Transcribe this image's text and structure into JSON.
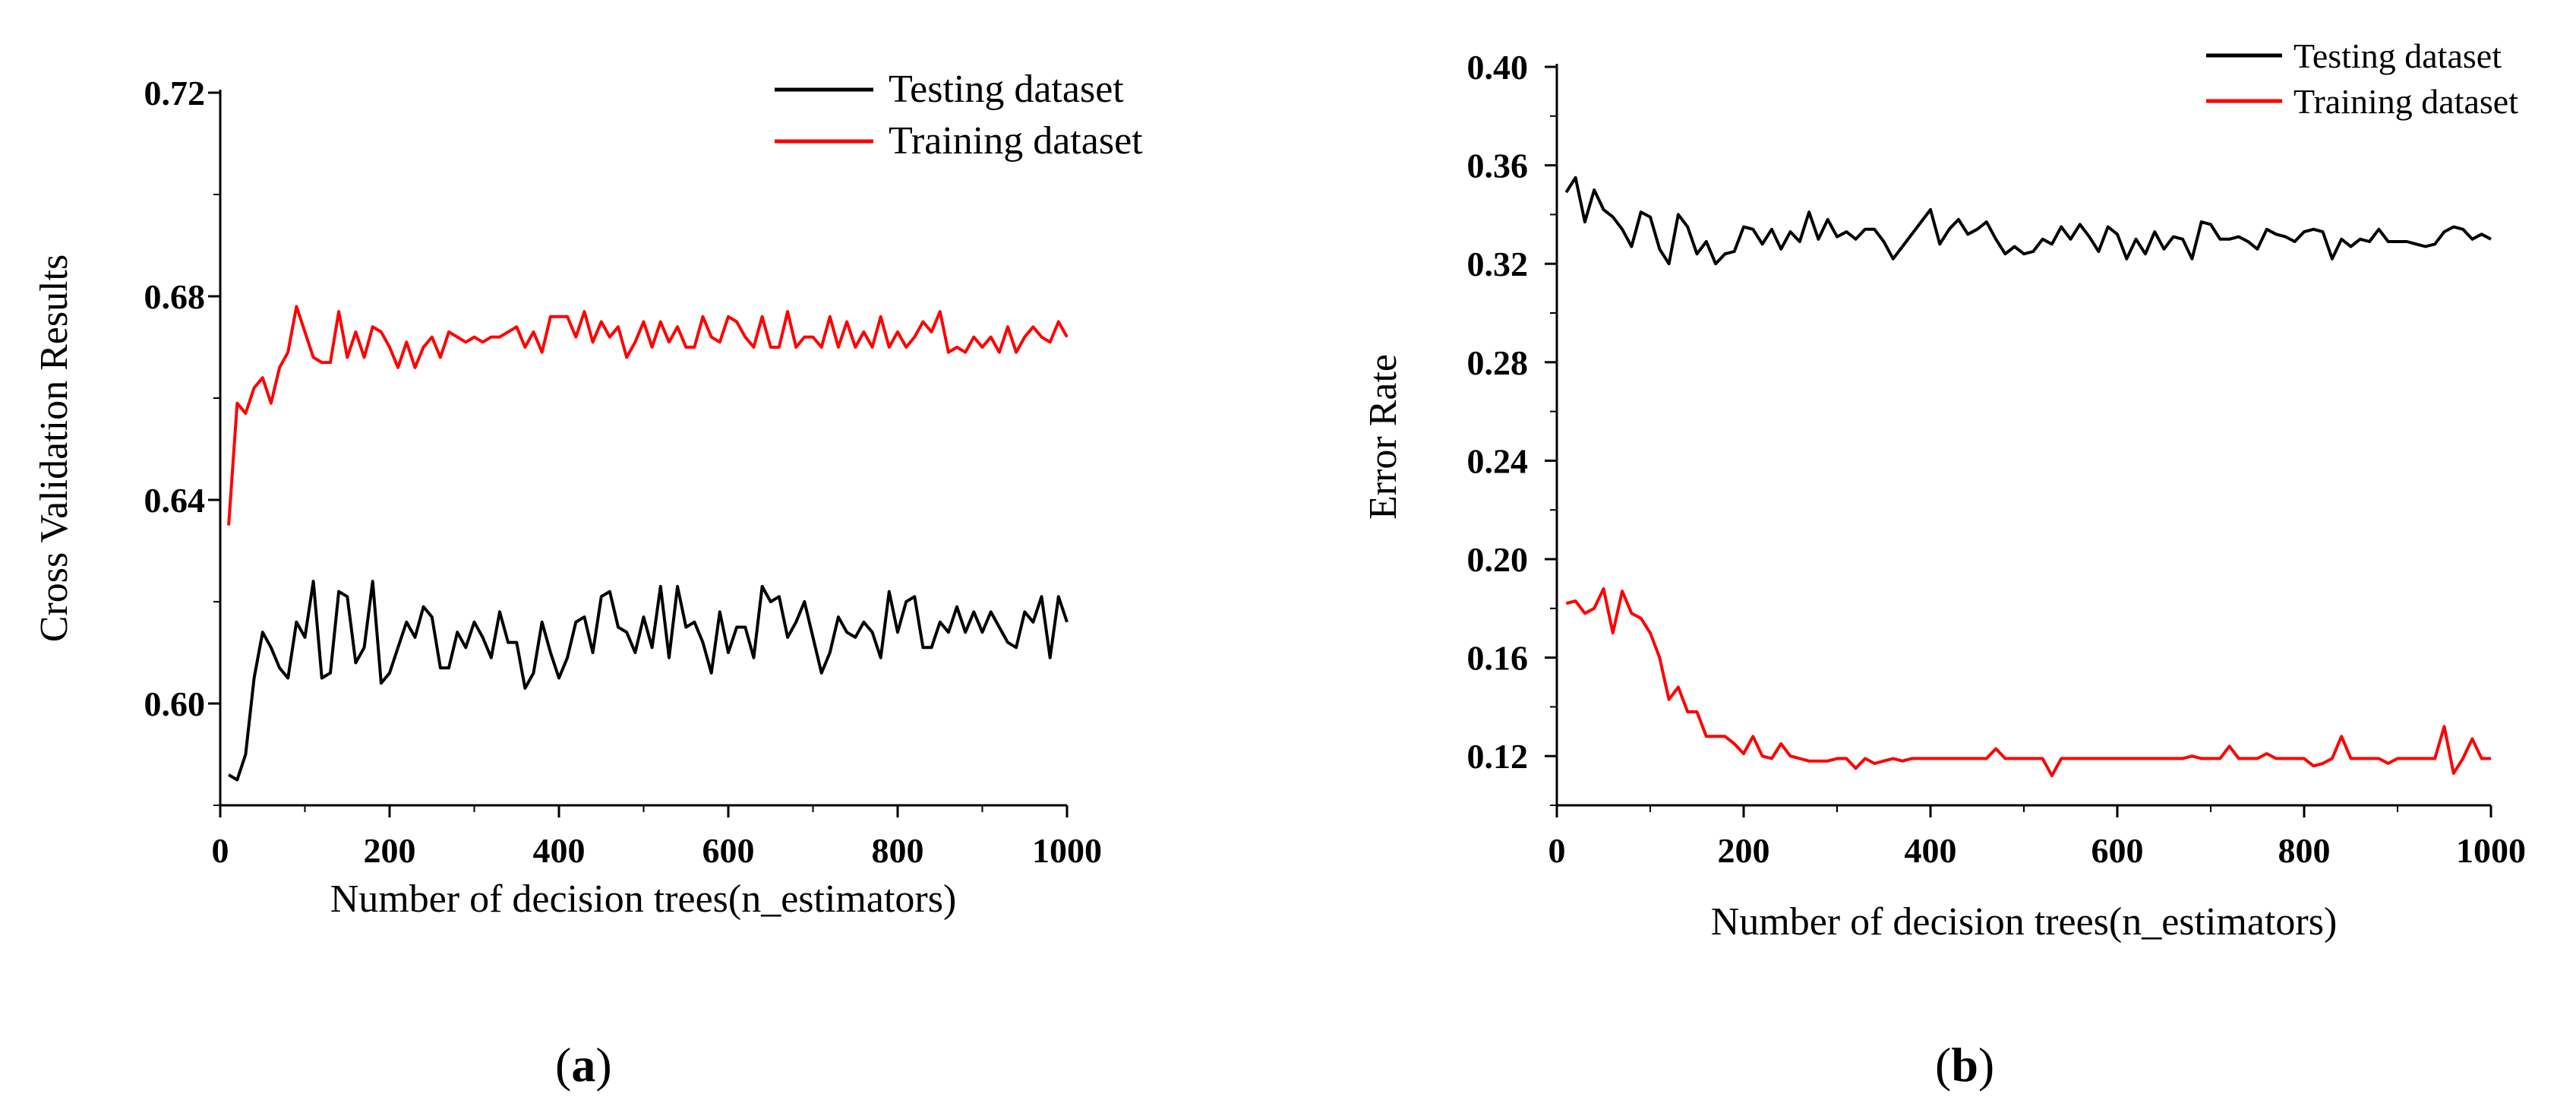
{
  "chart_data": [
    {
      "type": "line",
      "panel_label": "(a)",
      "panel_letter": "a",
      "title": "",
      "xlabel": "Number of decision trees(n_estimators)",
      "ylabel": "Cross Validation Results",
      "xlim": [
        0,
        1000
      ],
      "ylim": [
        0.58,
        0.72
      ],
      "xticks": [
        0,
        200,
        400,
        600,
        800,
        1000
      ],
      "xtick_labels": [
        "0",
        "200",
        "400",
        "600",
        "800",
        "1000"
      ],
      "yticks": [
        0.6,
        0.64,
        0.68,
        0.72
      ],
      "ytick_labels": [
        "0.60",
        "0.64",
        "0.68",
        "0.72"
      ],
      "grid": false,
      "legend_position": "top-right",
      "x": [
        10,
        20,
        30,
        40,
        50,
        60,
        70,
        80,
        90,
        100,
        110,
        120,
        130,
        140,
        150,
        160,
        170,
        180,
        190,
        200,
        210,
        220,
        230,
        240,
        250,
        260,
        270,
        280,
        290,
        300,
        310,
        320,
        330,
        340,
        350,
        360,
        370,
        380,
        390,
        400,
        410,
        420,
        430,
        440,
        450,
        460,
        470,
        480,
        490,
        500,
        510,
        520,
        530,
        540,
        550,
        560,
        570,
        580,
        590,
        600,
        610,
        620,
        630,
        640,
        650,
        660,
        670,
        680,
        690,
        700,
        710,
        720,
        730,
        740,
        750,
        760,
        770,
        780,
        790,
        800,
        810,
        820,
        830,
        840,
        850,
        860,
        870,
        880,
        890,
        900,
        910,
        920,
        930,
        940,
        950,
        960,
        970,
        980,
        990,
        1000
      ],
      "series": [
        {
          "name": "Testing dataset",
          "color": "#000000",
          "values": [
            0.586,
            0.585,
            0.59,
            0.605,
            0.614,
            0.611,
            0.607,
            0.605,
            0.616,
            0.613,
            0.624,
            0.605,
            0.606,
            0.622,
            0.621,
            0.608,
            0.611,
            0.624,
            0.604,
            0.606,
            0.611,
            0.616,
            0.613,
            0.619,
            0.617,
            0.607,
            0.607,
            0.614,
            0.611,
            0.616,
            0.613,
            0.609,
            0.618,
            0.612,
            0.612,
            0.603,
            0.606,
            0.616,
            0.61,
            0.605,
            0.609,
            0.616,
            0.617,
            0.61,
            0.621,
            0.622,
            0.615,
            0.614,
            0.61,
            0.617,
            0.611,
            0.623,
            0.609,
            0.623,
            0.615,
            0.616,
            0.612,
            0.606,
            0.618,
            0.61,
            0.615,
            0.615,
            0.609,
            0.623,
            0.62,
            0.621,
            0.613,
            0.616,
            0.62,
            0.613,
            0.606,
            0.61,
            0.617,
            0.614,
            0.613,
            0.616,
            0.614,
            0.609,
            0.622,
            0.614,
            0.62,
            0.621,
            0.611,
            0.611,
            0.616,
            0.614,
            0.619,
            0.614,
            0.618,
            0.614,
            0.618,
            0.615,
            0.612,
            0.611,
            0.618,
            0.616,
            0.621,
            0.609,
            0.621,
            0.616
          ]
        },
        {
          "name": "Training dataset",
          "color": "#ff0000",
          "values": [
            0.635,
            0.659,
            0.657,
            0.662,
            0.664,
            0.659,
            0.666,
            0.669,
            0.678,
            0.673,
            0.668,
            0.667,
            0.667,
            0.677,
            0.668,
            0.673,
            0.668,
            0.674,
            0.673,
            0.67,
            0.666,
            0.671,
            0.666,
            0.67,
            0.672,
            0.668,
            0.673,
            0.672,
            0.671,
            0.672,
            0.671,
            0.672,
            0.672,
            0.673,
            0.674,
            0.67,
            0.673,
            0.669,
            0.676,
            0.676,
            0.676,
            0.672,
            0.677,
            0.671,
            0.675,
            0.672,
            0.674,
            0.668,
            0.671,
            0.675,
            0.67,
            0.675,
            0.671,
            0.674,
            0.67,
            0.67,
            0.676,
            0.672,
            0.671,
            0.676,
            0.675,
            0.672,
            0.67,
            0.676,
            0.67,
            0.67,
            0.677,
            0.67,
            0.672,
            0.672,
            0.67,
            0.676,
            0.67,
            0.675,
            0.67,
            0.673,
            0.67,
            0.676,
            0.67,
            0.673,
            0.67,
            0.672,
            0.675,
            0.673,
            0.677,
            0.669,
            0.67,
            0.669,
            0.672,
            0.67,
            0.672,
            0.669,
            0.674,
            0.669,
            0.672,
            0.674,
            0.672,
            0.671,
            0.675,
            0.672
          ]
        }
      ]
    },
    {
      "type": "line",
      "panel_label": "(b)",
      "panel_letter": "b",
      "title": "",
      "xlabel": "Number of decision trees(n_estimators)",
      "ylabel": "Error Rate",
      "xlim": [
        0,
        1000
      ],
      "ylim": [
        0.1,
        0.4
      ],
      "xticks": [
        0,
        200,
        400,
        600,
        800,
        1000
      ],
      "xtick_labels": [
        "0",
        "200",
        "400",
        "600",
        "800",
        "1000"
      ],
      "yticks": [
        0.12,
        0.16,
        0.2,
        0.24,
        0.28,
        0.32,
        0.36,
        0.4
      ],
      "ytick_labels": [
        "0.12",
        "0.16",
        "0.20",
        "0.24",
        "0.28",
        "0.32",
        "0.36",
        "0.40"
      ],
      "grid": false,
      "legend_position": "top-right",
      "x": [
        10,
        20,
        30,
        40,
        50,
        60,
        70,
        80,
        90,
        100,
        110,
        120,
        130,
        140,
        150,
        160,
        170,
        180,
        190,
        200,
        210,
        220,
        230,
        240,
        250,
        260,
        270,
        280,
        290,
        300,
        310,
        320,
        330,
        340,
        350,
        360,
        370,
        380,
        390,
        400,
        410,
        420,
        430,
        440,
        450,
        460,
        470,
        480,
        490,
        500,
        510,
        520,
        530,
        540,
        550,
        560,
        570,
        580,
        590,
        600,
        610,
        620,
        630,
        640,
        650,
        660,
        670,
        680,
        690,
        700,
        710,
        720,
        730,
        740,
        750,
        760,
        770,
        780,
        790,
        800,
        810,
        820,
        830,
        840,
        850,
        860,
        870,
        880,
        890,
        900,
        910,
        920,
        930,
        940,
        950,
        960,
        970,
        980,
        990,
        1000
      ],
      "series": [
        {
          "name": "Testing dataset",
          "color": "#000000",
          "values": [
            0.349,
            0.355,
            0.337,
            0.35,
            0.342,
            0.339,
            0.334,
            0.327,
            0.341,
            0.339,
            0.326,
            0.32,
            0.34,
            0.335,
            0.324,
            0.329,
            0.32,
            0.324,
            0.325,
            0.335,
            0.334,
            0.328,
            0.334,
            0.326,
            0.333,
            0.329,
            0.341,
            0.33,
            0.338,
            0.331,
            0.333,
            0.33,
            0.334,
            0.334,
            0.329,
            0.322,
            0.327,
            0.332,
            0.337,
            0.342,
            0.328,
            0.334,
            0.338,
            0.332,
            0.334,
            0.337,
            0.33,
            0.324,
            0.327,
            0.324,
            0.325,
            0.33,
            0.328,
            0.335,
            0.33,
            0.336,
            0.331,
            0.325,
            0.335,
            0.332,
            0.322,
            0.33,
            0.324,
            0.333,
            0.326,
            0.331,
            0.33,
            0.322,
            0.337,
            0.336,
            0.33,
            0.33,
            0.331,
            0.329,
            0.326,
            0.334,
            0.332,
            0.331,
            0.329,
            0.333,
            0.334,
            0.333,
            0.322,
            0.33,
            0.327,
            0.33,
            0.329,
            0.334,
            0.329,
            0.329,
            0.329,
            0.328,
            0.327,
            0.328,
            0.333,
            0.335,
            0.334,
            0.33,
            0.332,
            0.33
          ]
        },
        {
          "name": "Training dataset",
          "color": "#ff0000",
          "values": [
            0.182,
            0.183,
            0.178,
            0.18,
            0.188,
            0.17,
            0.187,
            0.178,
            0.176,
            0.17,
            0.16,
            0.143,
            0.148,
            0.138,
            0.138,
            0.128,
            0.128,
            0.128,
            0.125,
            0.121,
            0.128,
            0.12,
            0.119,
            0.125,
            0.12,
            0.119,
            0.118,
            0.118,
            0.118,
            0.119,
            0.119,
            0.115,
            0.119,
            0.117,
            0.118,
            0.119,
            0.118,
            0.119,
            0.119,
            0.119,
            0.119,
            0.119,
            0.119,
            0.119,
            0.119,
            0.119,
            0.123,
            0.119,
            0.119,
            0.119,
            0.119,
            0.119,
            0.112,
            0.119,
            0.119,
            0.119,
            0.119,
            0.119,
            0.119,
            0.119,
            0.119,
            0.119,
            0.119,
            0.119,
            0.119,
            0.119,
            0.119,
            0.12,
            0.119,
            0.119,
            0.119,
            0.124,
            0.119,
            0.119,
            0.119,
            0.121,
            0.119,
            0.119,
            0.119,
            0.119,
            0.116,
            0.117,
            0.119,
            0.128,
            0.119,
            0.119,
            0.119,
            0.119,
            0.117,
            0.119,
            0.119,
            0.119,
            0.119,
            0.119,
            0.132,
            0.113,
            0.119,
            0.127,
            0.119,
            0.119
          ]
        }
      ]
    }
  ]
}
